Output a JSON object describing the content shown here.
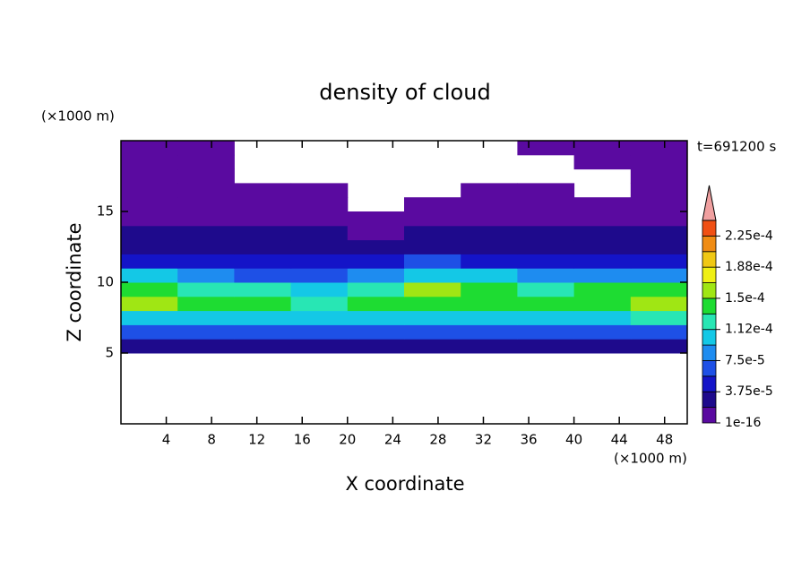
{
  "chart_data": {
    "type": "contour",
    "title": "density of cloud",
    "xlabel": "X coordinate",
    "ylabel": "Z coordinate",
    "x_unit": "(×1000 m)",
    "y_unit": "(×1000 m)",
    "annotation": "t=691200 s",
    "xlim": [
      0,
      50
    ],
    "xticks": [
      4,
      8,
      12,
      16,
      20,
      24,
      28,
      32,
      36,
      40,
      44,
      48
    ],
    "ylim": [
      0,
      20
    ],
    "yticks": [
      5,
      10,
      15
    ],
    "x": [
      2.5,
      7.5,
      12.5,
      17.5,
      22.5,
      27.5,
      32.5,
      37.5,
      42.5,
      47.5
    ],
    "z": [
      5.5,
      6.5,
      7.5,
      8.5,
      9.5,
      10.5,
      11.5,
      12.5,
      13.5,
      14.5,
      15.5,
      16.5,
      17.5,
      18.5,
      19.5
    ],
    "values": [
      [
        2.5e-05,
        2e-05,
        2.5e-05,
        2e-05,
        2.5e-05,
        2e-05,
        2.5e-05,
        2e-05,
        2.5e-05,
        2e-05
      ],
      [
        7e-05,
        6.5e-05,
        7e-05,
        6e-05,
        7e-05,
        6.5e-05,
        7e-05,
        6.5e-05,
        6e-05,
        7e-05
      ],
      [
        0.00011,
        0.000105,
        0.0001,
        0.0001,
        0.000105,
        0.00011,
        0.000105,
        0.00011,
        0.00011,
        0.000115
      ],
      [
        0.00015,
        0.000135,
        0.00014,
        0.00013,
        0.000135,
        0.000145,
        0.00014,
        0.00014,
        0.000145,
        0.00015
      ],
      [
        0.000145,
        0.00012,
        0.00013,
        0.00011,
        0.00013,
        0.00015,
        0.000135,
        0.00012,
        0.00014,
        0.000135
      ],
      [
        0.0001,
        8e-05,
        7e-05,
        6e-05,
        8e-05,
        0.00011,
        0.0001,
        8e-05,
        9e-05,
        8e-05
      ],
      [
        5e-05,
        4.5e-05,
        4e-05,
        4e-05,
        5e-05,
        6e-05,
        5e-05,
        4.5e-05,
        5e-05,
        4.5e-05
      ],
      [
        3e-05,
        3e-05,
        3.5e-05,
        3e-05,
        3e-05,
        3.5e-05,
        3e-05,
        2.5e-05,
        3e-05,
        3e-05
      ],
      [
        2e-05,
        2e-05,
        2.5e-05,
        2e-05,
        1.5e-05,
        2e-05,
        2.5e-05,
        2e-05,
        2e-05,
        2e-05
      ],
      [
        1e-05,
        1.5e-05,
        1.5e-05,
        1e-05,
        1e-05,
        1e-05,
        1e-05,
        1.5e-05,
        1e-05,
        1e-05
      ],
      [
        5e-06,
        8e-06,
        8e-06,
        5e-06,
        null,
        5e-06,
        8e-06,
        5e-06,
        5e-06,
        5e-06
      ],
      [
        5e-06,
        5e-06,
        5e-06,
        3e-06,
        null,
        null,
        5e-06,
        3e-06,
        null,
        3e-06
      ],
      [
        3e-06,
        3e-06,
        null,
        null,
        null,
        null,
        null,
        null,
        null,
        3e-06
      ],
      [
        3e-06,
        2e-06,
        null,
        null,
        null,
        null,
        null,
        null,
        3e-06,
        2e-06
      ],
      [
        2e-06,
        2e-06,
        null,
        null,
        null,
        null,
        null,
        3e-06,
        2e-06,
        2e-06
      ]
    ],
    "levels": [
      1e-16,
      1.875e-05,
      3.75e-05,
      5.625e-05,
      7.5e-05,
      9.375e-05,
      0.0001125,
      0.00013125,
      0.00015,
      0.00016875,
      0.0001875,
      0.00020625,
      0.000225,
      0.00024375
    ],
    "colors": [
      "#5a0aa0",
      "#1e0a8c",
      "#1414c8",
      "#1e50e6",
      "#1e8cf0",
      "#14c8e6",
      "#28e6b4",
      "#1edc32",
      "#a0e614",
      "#f0f014",
      "#f0c814",
      "#f08c14",
      "#f05014"
    ],
    "extend_color": "#f0a0a0",
    "cbar_ticks": [
      1e-16,
      {
        "value": 3.75e-05,
        "label": "3.75e-5"
      },
      {
        "value": 7.5e-05,
        "label": "7.5e-5"
      },
      {
        "value": 0.0001125,
        "label": "1.12e-4"
      },
      {
        "value": 0.00015,
        "label": "1.5e-4"
      },
      {
        "value": 0.0001875,
        "label": "1.88e-4"
      },
      {
        "value": 0.000225,
        "label": "2.25e-4"
      }
    ]
  }
}
